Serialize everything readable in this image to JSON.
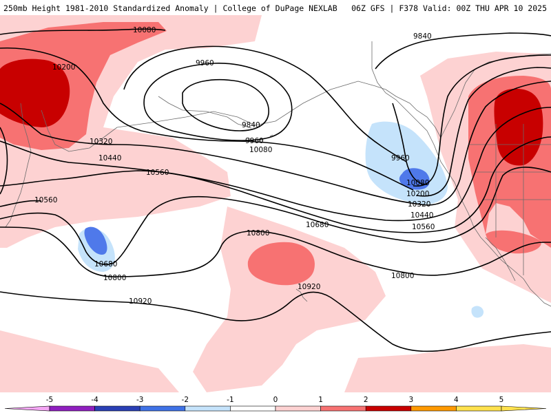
{
  "header": {
    "left": "250mb Height 1981-2010 Standardized Anomaly | College of DuPage NEXLAB",
    "right": "06Z GFS | F378 Valid: 00Z THU APR 10 2025"
  },
  "contour_labels": [
    "10080",
    "10200",
    "9960",
    "9840",
    "9960",
    "10080",
    "10320",
    "10440",
    "10560",
    "9840",
    "9960",
    "10080",
    "10200",
    "10320",
    "10440",
    "10560",
    "10560",
    "10680",
    "10680",
    "10800",
    "10800",
    "10800",
    "10920",
    "10920"
  ],
  "colorbar": {
    "ticks": [
      "-5",
      "-4",
      "-3",
      "-2",
      "-1",
      "0",
      "1",
      "2",
      "3",
      "4",
      "5"
    ],
    "colors": [
      "#f4a6f4",
      "#8f1fbf",
      "#2a3fb5",
      "#3f72e6",
      "#c5e3fb",
      "#ffffff",
      "#fdd2d2",
      "#f77272",
      "#c80000",
      "#ff9900",
      "#ffe14d"
    ]
  },
  "anomaly_colors": {
    "neg_1": "#c5e3fb",
    "neg_2": "#4f79ea",
    "pos_1": "#fdd2d2",
    "pos_2": "#f77272",
    "pos_3": "#c80000"
  }
}
